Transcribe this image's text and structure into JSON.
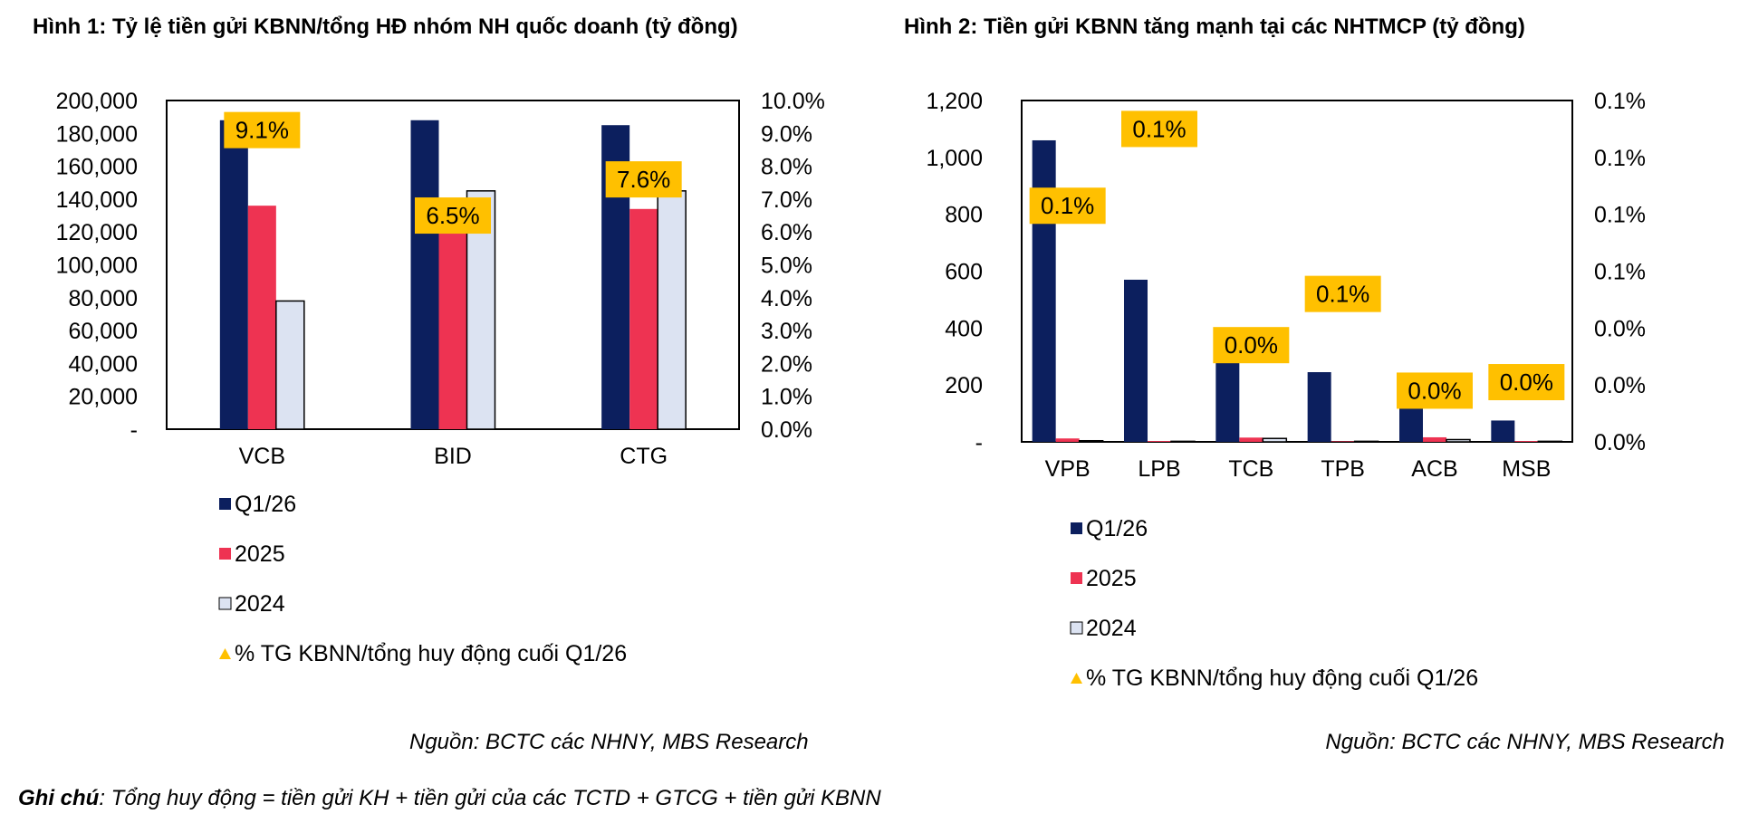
{
  "charts": [
    {
      "title": "Hình 1: Tỷ lệ tiền gửi KBNN/tổng HĐ nhóm NH quốc doanh (tỷ đồng)",
      "source": "Nguồn: BCTC các NHNY, MBS Research"
    },
    {
      "title": "Hình 2: Tiền gửi KBNN tăng mạnh tại các NHTMCP (tỷ đồng)",
      "source": "Nguồn: BCTC các NHNY, MBS Research"
    }
  ],
  "note": {
    "label": "Ghi chú",
    "text": ": Tổng huy động = tiền gửi KH + tiền gửi của các TCTD + GTCG + tiền gửi KBNN"
  },
  "colors": {
    "q1_26": "#0c1f5e",
    "y2025": "#ee3352",
    "y2024": "#dce3f2",
    "label_bg": "#ffc000",
    "marker": "#ffc000"
  },
  "chart_data": [
    {
      "type": "bar",
      "categories": [
        "VCB",
        "BID",
        "CTG"
      ],
      "series": [
        {
          "name": "Q1/26",
          "values": [
            188000,
            188000,
            185000
          ]
        },
        {
          "name": "2025",
          "values": [
            136000,
            121000,
            134000
          ]
        },
        {
          "name": "2024",
          "values": [
            78000,
            145000,
            145000
          ]
        }
      ],
      "line_series": {
        "name": "% TG KBNN/tổng huy động cuối Q1/26",
        "values": [
          9.1,
          6.5,
          7.6
        ],
        "labels": [
          "9.1%",
          "6.5%",
          "7.6%"
        ]
      },
      "ylim": [
        0,
        200000
      ],
      "y_ticks": [
        "-",
        "20,000",
        "40,000",
        "60,000",
        "80,000",
        "100,000",
        "120,000",
        "140,000",
        "160,000",
        "180,000",
        "200,000"
      ],
      "y2lim": [
        0,
        10
      ],
      "y2_ticks": [
        "0.0%",
        "1.0%",
        "2.0%",
        "3.0%",
        "4.0%",
        "5.0%",
        "6.0%",
        "7.0%",
        "8.0%",
        "9.0%",
        "10.0%"
      ],
      "legend_position": "bottom-left"
    },
    {
      "type": "bar",
      "categories": [
        "VPB",
        "LPB",
        "TCB",
        "TPB",
        "ACB",
        "MSB"
      ],
      "series": [
        {
          "name": "Q1/26",
          "values": [
            1060,
            570,
            300,
            245,
            130,
            75
          ]
        },
        {
          "name": "2025",
          "values": [
            12,
            3,
            15,
            2,
            16,
            3
          ]
        },
        {
          "name": "2024",
          "values": [
            4,
            2,
            12,
            2,
            8,
            2
          ]
        }
      ],
      "line_series": {
        "name": "% TG KBNN/tổng huy động cuối Q1/26",
        "values": [
          0.083,
          0.11,
          0.034,
          0.052,
          0.018,
          0.021
        ],
        "labels": [
          "0.1%",
          "0.1%",
          "0.0%",
          "0.1%",
          "0.0%",
          "0.0%"
        ]
      },
      "ylim": [
        0,
        1200
      ],
      "y_ticks": [
        "-",
        "200",
        "400",
        "600",
        "800",
        "1,000",
        "1,200"
      ],
      "y2lim": [
        0,
        0.12
      ],
      "y2_ticks": [
        "0.0%",
        "0.0%",
        "0.0%",
        "0.1%",
        "0.1%",
        "0.1%",
        "0.1%"
      ],
      "legend_position": "bottom-left"
    }
  ]
}
